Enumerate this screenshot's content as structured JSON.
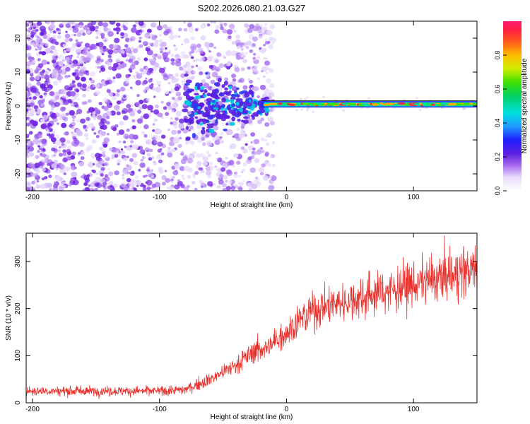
{
  "title": "S202.2026.080.21.03.G27",
  "colors": {
    "snr_line": "#e8322d",
    "axis": "#000000",
    "scatter_low": "#7a2be2",
    "scatter_fade": "#d9c6f7"
  },
  "chart_data": [
    {
      "type": "heatmap",
      "title": "S202.2026.080.21.03.G27",
      "xlabel": "Height of straight line (km)",
      "ylabel": "Frequency (Hz)",
      "xlim": [
        -205,
        150
      ],
      "ylim": [
        -25,
        25
      ],
      "xticks": [
        -200,
        -100,
        0,
        100
      ],
      "yticks": [
        -20,
        -10,
        0,
        10,
        20
      ],
      "xtick_labels": [
        "-200",
        "-100",
        "0",
        "100"
      ],
      "ytick_labels": [
        "-20",
        "-10",
        "0",
        "10",
        "20"
      ],
      "colorbar": {
        "label": "Normalized spectral amplitude",
        "range": [
          0,
          1
        ],
        "ticks": [
          "0.0",
          "0.2",
          "0.4",
          "0.6",
          "0.8"
        ],
        "tick_values": [
          0.0,
          0.2,
          0.4,
          0.6,
          0.8
        ]
      },
      "description_points": {
        "noise_region_km": [
          -205,
          -20
        ],
        "signal_region_km": [
          -20,
          150
        ],
        "signal_frequency_hz": 0.5
      }
    },
    {
      "type": "line",
      "xlabel": "Height of straight line (km)",
      "ylabel": "SNR (10 * v/v)",
      "xlim": [
        -205,
        150
      ],
      "ylim": [
        0,
        360
      ],
      "xticks": [
        -200,
        -100,
        0,
        100
      ],
      "yticks": [
        0,
        100,
        200,
        300
      ],
      "xtick_labels": [
        "-200",
        "-100",
        "0",
        "100"
      ],
      "ytick_labels": [
        "0",
        "100",
        "200",
        "300"
      ],
      "series": [
        {
          "name": "SNR",
          "x": [
            -205,
            -150,
            -100,
            -80,
            -60,
            -40,
            -25,
            -12,
            -8,
            0,
            10,
            20,
            30,
            50,
            70,
            90,
            110,
            130,
            150
          ],
          "values": [
            25,
            25,
            25,
            28,
            50,
            80,
            110,
            120,
            135,
            150,
            175,
            195,
            205,
            218,
            232,
            245,
            258,
            270,
            285
          ]
        }
      ]
    }
  ]
}
